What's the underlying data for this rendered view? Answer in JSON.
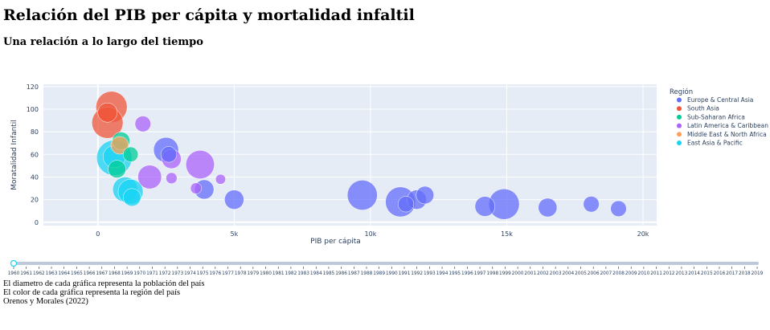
{
  "page": {
    "title": "Relación del PIB per cápita y mortalidad infaltil",
    "subtitle": "Una relación a lo largo del tiempo",
    "notes": [
      "El diametro de cada gráfica representa la población del país",
      "El color de cada gráfica representa la región del país",
      "Orenos y Morales (2022)"
    ]
  },
  "chart_data": {
    "type": "scatter",
    "xlabel": "PIB per cápita",
    "ylabel": "Moratalidad Infantil",
    "xlim": [
      -2000,
      20500
    ],
    "ylim": [
      -3,
      122
    ],
    "xticks": [
      0,
      5000,
      10000,
      15000,
      20000
    ],
    "xtick_labels": [
      "0",
      "5k",
      "10k",
      "15k",
      "20k"
    ],
    "yticks": [
      0,
      20,
      40,
      60,
      80,
      100,
      120
    ],
    "grid": true,
    "legend_title": "Región",
    "legend_position": "right",
    "series": [
      {
        "name": "Europe & Central Asia",
        "color": "#636efa",
        "points": [
          {
            "x": 2500,
            "y": 64,
            "size": 0.5
          },
          {
            "x": 2600,
            "y": 60,
            "size": 0.2
          },
          {
            "x": 3900,
            "y": 29,
            "size": 0.3
          },
          {
            "x": 5000,
            "y": 20,
            "size": 0.3
          },
          {
            "x": 9700,
            "y": 24,
            "size": 0.72
          },
          {
            "x": 11100,
            "y": 18,
            "size": 0.72
          },
          {
            "x": 11300,
            "y": 16,
            "size": 0.2
          },
          {
            "x": 11700,
            "y": 20,
            "size": 0.3
          },
          {
            "x": 12000,
            "y": 24,
            "size": 0.25
          },
          {
            "x": 14200,
            "y": 14,
            "size": 0.32
          },
          {
            "x": 14900,
            "y": 16,
            "size": 0.75
          },
          {
            "x": 16500,
            "y": 13,
            "size": 0.28
          },
          {
            "x": 18100,
            "y": 16,
            "size": 0.2
          },
          {
            "x": 19100,
            "y": 12,
            "size": 0.2
          }
        ]
      },
      {
        "name": "South Asia",
        "color": "#ef553b",
        "points": [
          {
            "x": 500,
            "y": 102,
            "size": 0.78
          },
          {
            "x": 350,
            "y": 97,
            "size": 0.3
          },
          {
            "x": 350,
            "y": 88,
            "size": 0.78
          }
        ]
      },
      {
        "name": "Sub-Saharan Africa",
        "color": "#00cc96",
        "points": [
          {
            "x": 850,
            "y": 72,
            "size": 0.25
          },
          {
            "x": 1200,
            "y": 60,
            "size": 0.18
          },
          {
            "x": 700,
            "y": 47,
            "size": 0.25
          }
        ]
      },
      {
        "name": "Latin America & Caribbean",
        "color": "#ab63fa",
        "points": [
          {
            "x": 1650,
            "y": 87,
            "size": 0.2
          },
          {
            "x": 2700,
            "y": 56,
            "size": 0.3
          },
          {
            "x": 3750,
            "y": 51,
            "size": 0.65
          },
          {
            "x": 1900,
            "y": 40,
            "size": 0.45
          },
          {
            "x": 2700,
            "y": 39,
            "size": 0.1
          },
          {
            "x": 3600,
            "y": 30,
            "size": 0.1
          },
          {
            "x": 4500,
            "y": 38,
            "size": 0.08
          }
        ]
      },
      {
        "name": "Middle East & North Africa",
        "color": "#ffa15a",
        "points": [
          {
            "x": 800,
            "y": 68,
            "size": 0.25
          }
        ]
      },
      {
        "name": "East Asia & Pacific",
        "color": "#19d3f3",
        "points": [
          {
            "x": 600,
            "y": 57,
            "size": 1.0
          },
          {
            "x": 600,
            "y": 58,
            "size": 0.4
          },
          {
            "x": 1000,
            "y": 29,
            "size": 0.5
          },
          {
            "x": 1200,
            "y": 27,
            "size": 0.5
          },
          {
            "x": 1250,
            "y": 22,
            "size": 0.25
          }
        ]
      }
    ],
    "slider": {
      "years": [
        "1960",
        "1961",
        "1962",
        "1963",
        "1964",
        "1965",
        "1966",
        "1967",
        "1968",
        "1969",
        "1970",
        "1971",
        "1972",
        "1973",
        "1974",
        "1975",
        "1976",
        "1977",
        "1978",
        "1979",
        "1980",
        "1981",
        "1982",
        "1983",
        "1984",
        "1985",
        "1986",
        "1987",
        "1988",
        "1989",
        "1990",
        "1991",
        "1992",
        "1993",
        "1994",
        "1995",
        "1996",
        "1997",
        "1998",
        "1999",
        "2000",
        "2001",
        "2002",
        "2003",
        "2004",
        "2005",
        "2006",
        "2007",
        "2008",
        "2009",
        "2010",
        "2011",
        "2012",
        "2013",
        "2014",
        "2015",
        "2016",
        "2017",
        "2018",
        "2019"
      ],
      "active": "1960",
      "active_color": "#19d3f3"
    }
  }
}
